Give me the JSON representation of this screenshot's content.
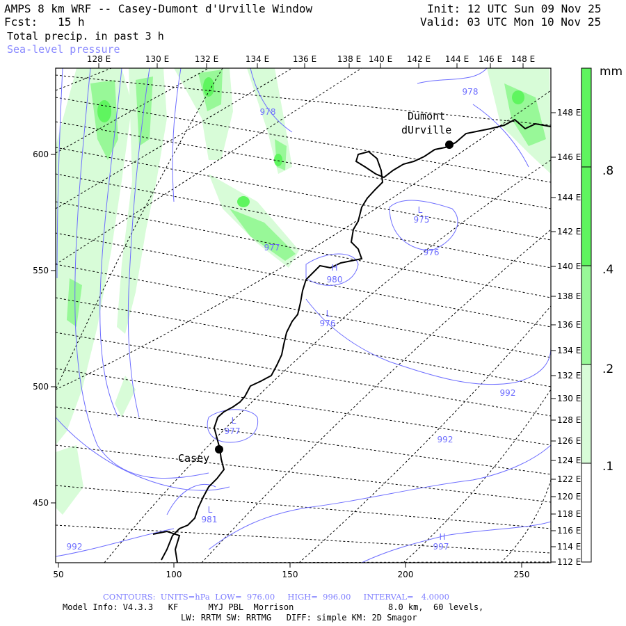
{
  "header": {
    "title": "AMPS 8 km WRF -- Casey-Dumont d'Urville Window",
    "forecast": "Fcst:   15 h",
    "init": "Init: 12 UTC Sun 09 Nov 25",
    "valid": "Valid: 03 UTC Mon 10 Nov 25",
    "field1": "Total precip. in past 3 h",
    "field2": "Sea-level pressure"
  },
  "axes": {
    "top_ticks": [
      "128 E",
      "130 E",
      "132 E",
      "134 E",
      "136 E",
      "138 E",
      "140 E",
      "142 E",
      "144 E",
      "146 E",
      "148 E"
    ],
    "right_ticks": [
      "148 E",
      "146 E",
      "144 E",
      "142 E",
      "140 E",
      "138 E",
      "136 E",
      "134 E",
      "132 E",
      "130 E",
      "128 E",
      "126 E",
      "124 E",
      "122 E",
      "120 E",
      "118 E",
      "116 E",
      "114 E",
      "112 E"
    ],
    "bottom_ticks": [
      "50",
      "100",
      "150",
      "200",
      "250"
    ],
    "left_ticks": [
      "600",
      "550",
      "500",
      "450"
    ]
  },
  "legend": {
    "units": "mm",
    "levels": [
      ".8",
      ".4",
      ".2",
      ".1"
    ],
    "colors": [
      "#5ff55f",
      "#98f898",
      "#d8fcd8",
      "#ffffff"
    ]
  },
  "places": {
    "dumont_1": "Dumont",
    "dumont_2": "dUrville",
    "casey": "Casey"
  },
  "contour_labels": [
    {
      "text": "978",
      "type": "value"
    },
    {
      "text": "978",
      "type": "value"
    },
    {
      "text": "977",
      "type": "value"
    },
    {
      "text": "L",
      "type": "low"
    },
    {
      "text": "975",
      "type": "value"
    },
    {
      "text": "976",
      "type": "value"
    },
    {
      "text": "H",
      "type": "high"
    },
    {
      "text": "980",
      "type": "value"
    },
    {
      "text": "L",
      "type": "low"
    },
    {
      "text": "976",
      "type": "value"
    },
    {
      "text": "992",
      "type": "value"
    },
    {
      "text": "L",
      "type": "low"
    },
    {
      "text": "977",
      "type": "value"
    },
    {
      "text": "992",
      "type": "value"
    },
    {
      "text": "L",
      "type": "low"
    },
    {
      "text": "981",
      "type": "value"
    },
    {
      "text": "992",
      "type": "value"
    },
    {
      "text": "H",
      "type": "high"
    },
    {
      "text": "997",
      "type": "value"
    }
  ],
  "footer": {
    "contours": "CONTOURS:  UNITS=hPa  LOW=  976.00     HIGH=  996.00     INTERVAL=   4.0000",
    "model_a": "Model Info: V4.3.3   KF      MYJ PBL  Morrison",
    "model_b": "8.0 km,  60 levels,",
    "physics": "LW: RRTM SW: RRTMG   DIFF: simple KM: 2D Smagor"
  },
  "colors": {
    "contour": "#6d6dff",
    "precip_light": "#d8fcd8",
    "precip_mid": "#98f898",
    "precip_heavy": "#5ff55f"
  }
}
